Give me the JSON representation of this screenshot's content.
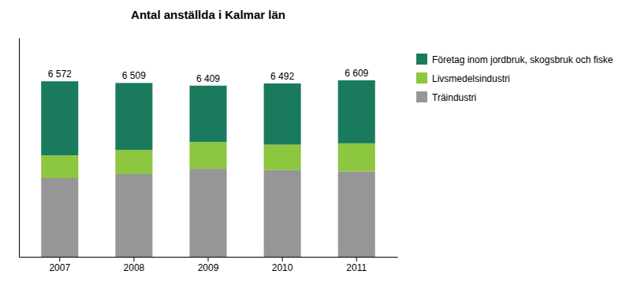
{
  "chart_data": {
    "type": "bar",
    "stacked": true,
    "title": "Antal anställda i Kalmar län",
    "categories": [
      "2007",
      "2008",
      "2009",
      "2010",
      "2011"
    ],
    "series": [
      {
        "name": "Träindustri",
        "color": "#969696",
        "values": [
          2950,
          3100,
          3300,
          3250,
          3200
        ]
      },
      {
        "name": "Livsmedelsindustri",
        "color": "#8dc63f",
        "values": [
          850,
          900,
          1000,
          950,
          1050
        ]
      },
      {
        "name": "Företag inom jordbruk, skogsbruk och fiske",
        "color": "#1a7a5e",
        "values": [
          2772,
          2509,
          2109,
          2292,
          2359
        ]
      }
    ],
    "totals": [
      6572,
      6509,
      6409,
      6492,
      6609
    ],
    "total_labels": [
      "6 572",
      "6 509",
      "6 409",
      "6 492",
      "6 609"
    ],
    "ylim": [
      0,
      8200
    ],
    "tick_labels": "x",
    "grid": false,
    "legend": "upper right"
  }
}
